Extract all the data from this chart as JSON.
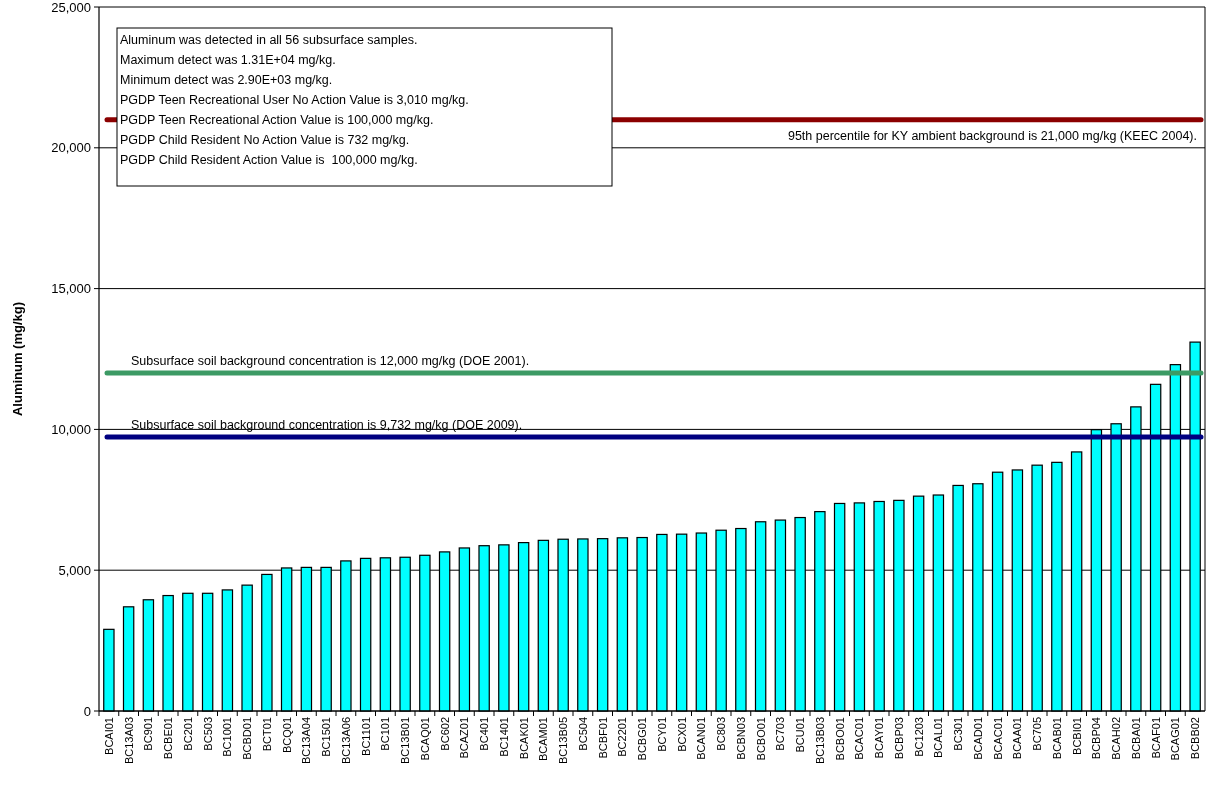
{
  "chart_data": {
    "type": "bar",
    "ylabel": "Aluminum (mg/kg)",
    "categories": [
      "BCAI01",
      "BC13A03",
      "BC901",
      "BCBE01",
      "BC201",
      "BC503",
      "BC1001",
      "BCBD01",
      "BCT01",
      "BCQ01",
      "BC13A04",
      "BC1501",
      "BC13A06",
      "BC1101",
      "BC101",
      "BC13B01",
      "BCAQ01",
      "BC602",
      "BCAZ01",
      "BC401",
      "BC1401",
      "BCAK01",
      "BCAM01",
      "BC13B05",
      "BC504",
      "BCBF01",
      "BC2201",
      "BCBG01",
      "BCY01",
      "BCX01",
      "BCAN01",
      "BC803",
      "BCBN03",
      "BCBO01",
      "BC703",
      "BCU01",
      "BC13B03",
      "BCBO01",
      "BCAC01",
      "BCAY01",
      "BCBP03",
      "BC1203",
      "BCAL01",
      "BC301",
      "BCAD01",
      "BCAC01",
      "BCAA01",
      "BC705",
      "BCAB01",
      "BCBI01",
      "BCBP04",
      "BCAH02",
      "BCBA01",
      "BCAF01",
      "BCAG01",
      "BCBB02"
    ],
    "values": [
      2900,
      3700,
      3950,
      4100,
      4180,
      4180,
      4300,
      4470,
      4850,
      5080,
      5100,
      5100,
      5330,
      5420,
      5440,
      5460,
      5530,
      5650,
      5790,
      5870,
      5900,
      5980,
      6060,
      6100,
      6110,
      6120,
      6150,
      6160,
      6270,
      6280,
      6320,
      6420,
      6480,
      6720,
      6780,
      6870,
      7080,
      7370,
      7390,
      7440,
      7480,
      7630,
      7670,
      8010,
      8070,
      8480,
      8560,
      8730,
      8830,
      9200,
      9990,
      10200,
      10800,
      11600,
      12300,
      13100
    ],
    "color": "#00ffff",
    "ylim": [
      0,
      25000
    ],
    "yticks": [
      {
        "value": 0,
        "label": "0"
      },
      {
        "value": 5000,
        "label": "5,000"
      },
      {
        "value": 10000,
        "label": "10,000"
      },
      {
        "value": 15000,
        "label": "15,000"
      },
      {
        "value": 20000,
        "label": "20,000"
      },
      {
        "value": 25000,
        "label": "25,000"
      }
    ],
    "grid": "y",
    "ref_lines": [
      {
        "axis": "y",
        "value": 21000,
        "label": "95th percentile for KY ambient background is 21,000 mg/kg (KEEC 2004).",
        "color": "#8b0000"
      },
      {
        "axis": "y",
        "value": 12000,
        "label": "Subsurface soil background concentration is 12,000 mg/kg (DOE 2001).",
        "color": "#3c9a64"
      },
      {
        "axis": "y",
        "value": 9732,
        "label": "Subsurface soil background concentration is 9,732 mg/kg (DOE 2009).",
        "color": "#000080"
      }
    ],
    "annotations": [
      "Aluminum was detected in all 56 subsurface samples.",
      "Maximum detect was 1.31E+04 mg/kg.",
      "Minimum detect was 2.90E+03 mg/kg.",
      "PGDP Teen Recreational User No Action Value is 3,010 mg/kg.",
      "PGDP Teen Recreational Action Value is 100,000 mg/kg.",
      "PGDP Child Resident No Action Value is 732 mg/kg.",
      "PGDP Child Resident Action Value is  100,000 mg/kg."
    ]
  }
}
